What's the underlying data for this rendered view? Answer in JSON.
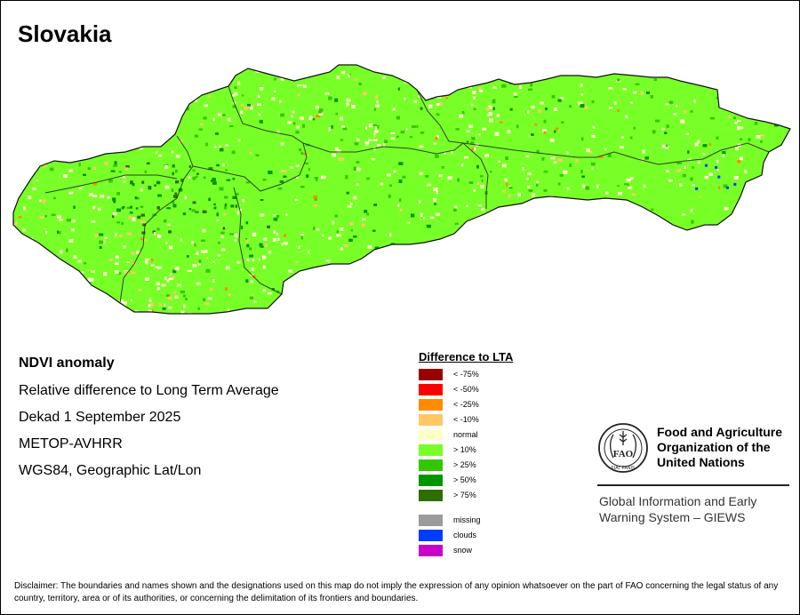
{
  "map": {
    "title": "Slovakia",
    "info": [
      "NDVI anomaly",
      "Relative difference to Long Term Average",
      "Dekad 1 September 2025",
      "METOP-AVHRR",
      "WGS84, Geographic Lat/Lon"
    ]
  },
  "legend": {
    "title": "Difference to LTA",
    "items": [
      {
        "label": "< -75%",
        "color": "#990000"
      },
      {
        "label": "< -50%",
        "color": "#ff0000"
      },
      {
        "label": "< -25%",
        "color": "#ff8c00"
      },
      {
        "label": "< -10%",
        "color": "#ffc864"
      },
      {
        "label": "normal",
        "color": "#ffffc8"
      },
      {
        "label": "> 10%",
        "color": "#78ff28"
      },
      {
        "label": "> 25%",
        "color": "#32c800"
      },
      {
        "label": "> 50%",
        "color": "#009600"
      },
      {
        "label": "> 75%",
        "color": "#2d6e00"
      },
      {
        "label": "missing",
        "color": "#9b9b9b"
      },
      {
        "label": "clouds",
        "color": "#003cff"
      },
      {
        "label": "snow",
        "color": "#c800c8"
      }
    ]
  },
  "organization": {
    "name": "Food and Agriculture\nOrganization of the\nUnited Nations",
    "logo_letters": "FAO",
    "logo_motto": "FIAT PANIS",
    "system": "Global Information and Early\nWarning System – GIEWS"
  },
  "disclaimer": "Disclaimer: The boundaries and names shown and the designations used on this map do not imply the expression of any opinion whatsoever on the part of FAO concerning the legal status of any country, territory, area or of its authorities, or concerning the delimitation of its frontiers and boundaries."
}
